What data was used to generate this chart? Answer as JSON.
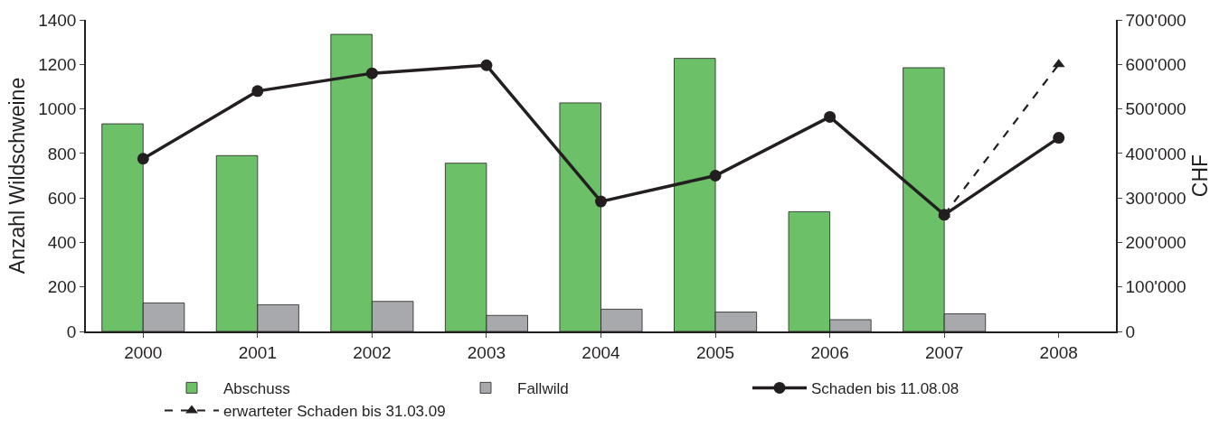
{
  "chart_data": {
    "type": "bar",
    "ylabel": "Anzahl Wildschweine",
    "y2label": "CHF",
    "categories": [
      "2000",
      "2001",
      "2002",
      "2003",
      "2004",
      "2005",
      "2006",
      "2007",
      "2008"
    ],
    "series": [
      {
        "name": "Abschuss",
        "color": "#6cc068",
        "values": [
          933,
          790,
          1335,
          756,
          1027,
          1227,
          538,
          1185,
          null
        ]
      },
      {
        "name": "Fallwild",
        "color": "#a7a9ac",
        "values": [
          128,
          120,
          135,
          72,
          100,
          87,
          53,
          79,
          null
        ]
      },
      {
        "name": "Schaden bis 11.08.08",
        "type": "line",
        "axis": "y2",
        "color": "#231f20",
        "marker": "circle",
        "line_style": "solid",
        "values": [
          388000,
          540000,
          580000,
          598000,
          292000,
          350000,
          482000,
          262000,
          435000
        ]
      },
      {
        "name": "erwarteter Schaden bis 31.03.09",
        "type": "line",
        "axis": "y2",
        "color": "#231f20",
        "marker": "triangle",
        "line_style": "dashed",
        "values": [
          null,
          null,
          null,
          null,
          null,
          null,
          null,
          262000,
          600000
        ]
      }
    ],
    "ylim": [
      0,
      1400
    ],
    "yticks": [
      0,
      200,
      400,
      600,
      800,
      1000,
      1200,
      1400
    ],
    "y2lim": [
      0,
      700000
    ],
    "y2ticks": [
      {
        "value": 0,
        "label": "0"
      },
      {
        "value": 100000,
        "label": "100'000"
      },
      {
        "value": 200000,
        "label": "200'000"
      },
      {
        "value": 300000,
        "label": "300'000"
      },
      {
        "value": 400000,
        "label": "400'000"
      },
      {
        "value": 500000,
        "label": "500'000"
      },
      {
        "value": 600000,
        "label": "600'000"
      },
      {
        "value": 700000,
        "label": "700'000"
      }
    ],
    "legend": "bottom"
  }
}
